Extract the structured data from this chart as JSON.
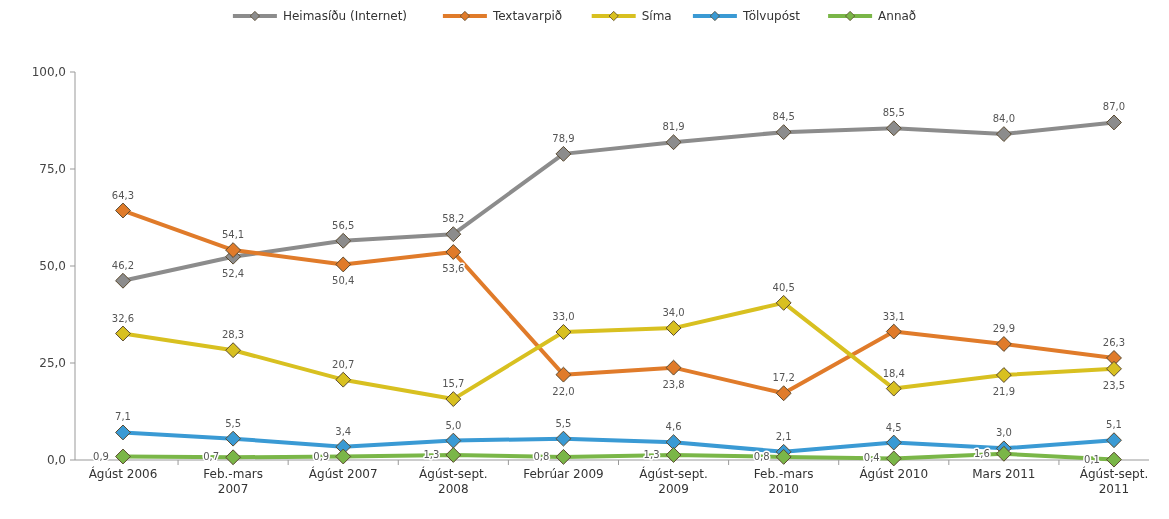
{
  "chart_data": {
    "type": "line",
    "categories": [
      "Ágúst 2006",
      "Feb.-mars 2007",
      "Ágúst 2007",
      "Ágúst-sept. 2008",
      "Febrúar 2009",
      "Ágúst-sept. 2009",
      "Feb.-mars 2010",
      "Ágúst 2010",
      "Mars 2011",
      "Ágúst-sept. 2011"
    ],
    "series": [
      {
        "name": "Heimasíðu (Internet)",
        "color": "#8c8c8c",
        "values": [
          46.2,
          52.4,
          56.5,
          58.2,
          78.9,
          81.9,
          84.5,
          85.5,
          84.0,
          87.0
        ],
        "value_labels": [
          "46,2",
          "52,4",
          "56,5",
          "58,2",
          "78,9",
          "81,9",
          "84,5",
          "85,5",
          "84,0",
          "87,0"
        ]
      },
      {
        "name": "Textavarpið",
        "color": "#e07b2a",
        "values": [
          64.3,
          54.1,
          50.4,
          53.6,
          22.0,
          23.8,
          17.2,
          33.1,
          29.9,
          26.3
        ],
        "value_labels": [
          "64,3",
          "54,1",
          "50,4",
          "53,6",
          "22,0",
          "23,8",
          "17,2",
          "33,1",
          "29,9",
          "26,3"
        ]
      },
      {
        "name": "Síma",
        "color": "#d8c020",
        "values": [
          32.6,
          28.3,
          20.7,
          15.7,
          33.0,
          34.0,
          40.5,
          18.4,
          21.9,
          23.5
        ],
        "value_labels": [
          "32,6",
          "28,3",
          "20,7",
          "15,7",
          "33,0",
          "34,0",
          "40,5",
          "18,4",
          "21,9",
          "23,5"
        ]
      },
      {
        "name": "Tölvupóst",
        "color": "#3a9ad4",
        "values": [
          7.1,
          5.5,
          3.4,
          5.0,
          5.5,
          4.6,
          2.1,
          4.5,
          3.0,
          5.1
        ],
        "value_labels": [
          "7,1",
          "5,5",
          "3,4",
          "5,0",
          "5,5",
          "4,6",
          "2,1",
          "4,5",
          "3,0",
          "5,1"
        ]
      },
      {
        "name": "Annað",
        "color": "#7ab648",
        "values": [
          0.9,
          0.7,
          0.9,
          1.3,
          0.8,
          1.3,
          0.8,
          0.4,
          1.6,
          0.1
        ],
        "value_labels": [
          "0,9",
          "0,7",
          "0,9",
          "1,3",
          "0,8",
          "1,3",
          "0,8",
          "0,4",
          "1,6",
          "0,1"
        ]
      }
    ],
    "ylim": [
      0,
      100
    ],
    "yticks": [
      {
        "value": 0,
        "label": "0,0"
      },
      {
        "value": 25,
        "label": "25,0"
      },
      {
        "value": 50,
        "label": "50,0"
      },
      {
        "value": 75,
        "label": "75,0"
      },
      {
        "value": 100,
        "label": "100,0"
      }
    ],
    "grid": false,
    "legend": "top",
    "marker": "diamond",
    "line_style": "solid"
  }
}
